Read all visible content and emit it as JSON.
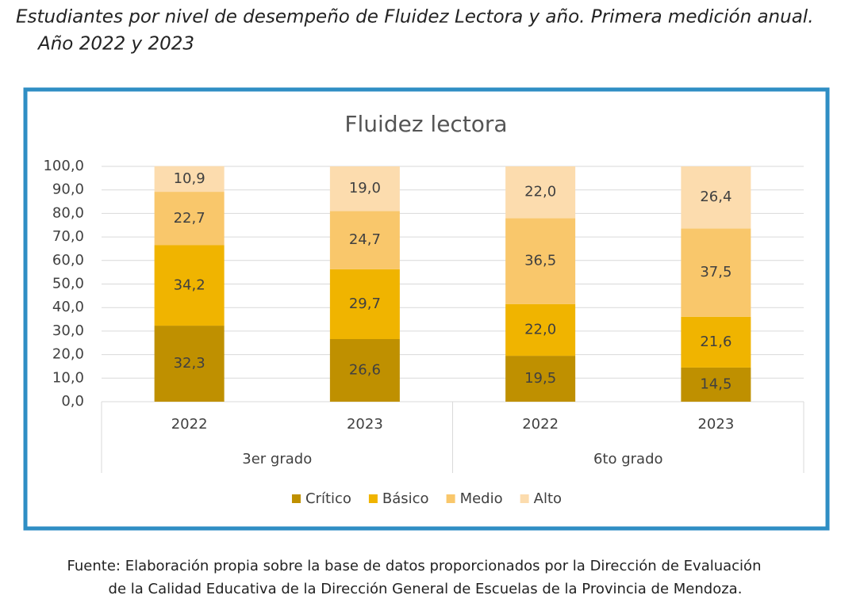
{
  "chart_data": {
    "type": "stacked_bar",
    "caption": [
      "Estudiantes por nivel de desempeño de Fluidez Lectora y año. Primera medición anual.",
      "Año  2022 y 2023"
    ],
    "title": "Fluidez lectora",
    "categories": [
      "2022",
      "2023",
      "2022",
      "2023"
    ],
    "groups": [
      "3er grado",
      "6to grado"
    ],
    "series": [
      {
        "name": "Crítico",
        "color": "#bf9000",
        "values": [
          32.3,
          26.6,
          19.5,
          14.5
        ],
        "value_labels": [
          "32,3",
          "26,6",
          "19,5",
          "14,5"
        ]
      },
      {
        "name": "Básico",
        "color": "#f0b400",
        "values": [
          34.2,
          29.7,
          22.0,
          21.6
        ],
        "value_labels": [
          "34,2",
          "29,7",
          "22,0",
          "21,6"
        ]
      },
      {
        "name": "Medio",
        "color": "#f9c76b",
        "values": [
          22.7,
          24.7,
          36.5,
          37.5
        ],
        "value_labels": [
          "22,7",
          "24,7",
          "36,5",
          "37,5"
        ]
      },
      {
        "name": "Alto",
        "color": "#fcdcae",
        "values": [
          10.9,
          19.0,
          22.0,
          26.4
        ],
        "value_labels": [
          "10,9",
          "19,0",
          "22,0",
          "26,4"
        ]
      }
    ],
    "ylim": [
      0,
      100
    ],
    "yticks": [
      {
        "value": 0,
        "label": "0,0"
      },
      {
        "value": 10,
        "label": "10,0"
      },
      {
        "value": 20,
        "label": "20,0"
      },
      {
        "value": 30,
        "label": "30,0"
      },
      {
        "value": 40,
        "label": "40,0"
      },
      {
        "value": 50,
        "label": "50,0"
      },
      {
        "value": 60,
        "label": "60,0"
      },
      {
        "value": 70,
        "label": "70,0"
      },
      {
        "value": 80,
        "label": "80,0"
      },
      {
        "value": 90,
        "label": "90,0"
      },
      {
        "value": 100,
        "label": "100,0"
      }
    ],
    "grid": true,
    "legend": "bottom",
    "source": [
      "Fuente: Elaboración propia sobre la base de datos proporcionados por la Dirección de Evaluación",
      "de la Calidad Educativa de la Dirección General de Escuelas de la Provincia de Mendoza."
    ]
  }
}
